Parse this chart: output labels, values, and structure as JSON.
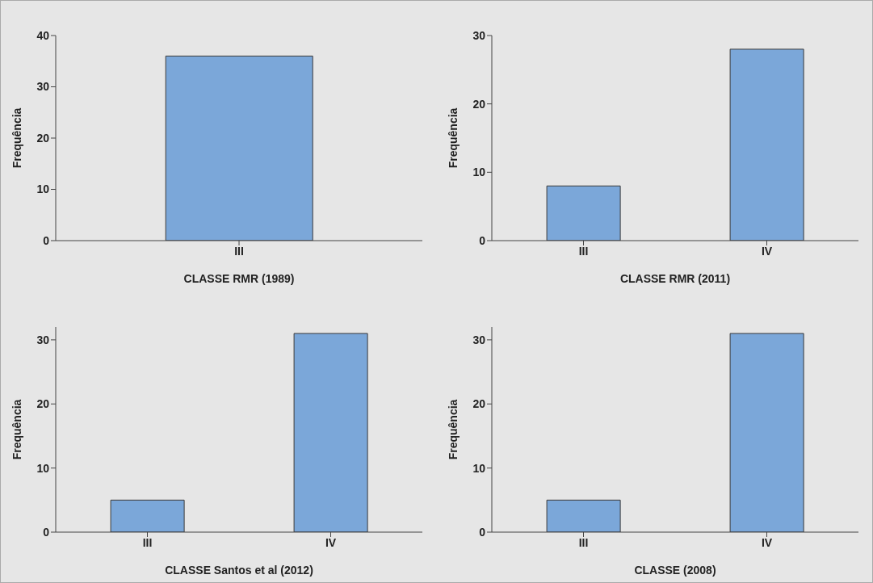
{
  "chart_data": [
    {
      "type": "bar",
      "categories": [
        "III"
      ],
      "values": [
        36
      ],
      "color": "#7ba7d9",
      "xlabel": "CLASSE RMR (1989)",
      "ylabel": "Frequência",
      "ylim": [
        0,
        40
      ],
      "yticks": [
        0,
        10,
        20,
        30,
        40
      ]
    },
    {
      "type": "bar",
      "categories": [
        "III",
        "IV"
      ],
      "values": [
        8,
        28
      ],
      "color": "#7ba7d9",
      "xlabel": "CLASSE RMR (2011)",
      "ylabel": "Frequência",
      "ylim": [
        0,
        30
      ],
      "yticks": [
        0,
        10,
        20,
        30
      ]
    },
    {
      "type": "bar",
      "categories": [
        "III",
        "IV"
      ],
      "values": [
        5,
        31
      ],
      "color": "#7ba7d9",
      "xlabel": "CLASSE Santos et al (2012)",
      "ylabel": "Frequência",
      "ylim": [
        0,
        32
      ],
      "yticks": [
        0,
        10,
        20,
        30
      ]
    },
    {
      "type": "bar",
      "categories": [
        "III",
        "IV"
      ],
      "values": [
        5,
        31
      ],
      "color": "#7ba7d9",
      "xlabel": "CLASSE (2008)",
      "ylabel": "Frequência",
      "ylim": [
        0,
        32
      ],
      "yticks": [
        0,
        10,
        20,
        30
      ]
    }
  ]
}
